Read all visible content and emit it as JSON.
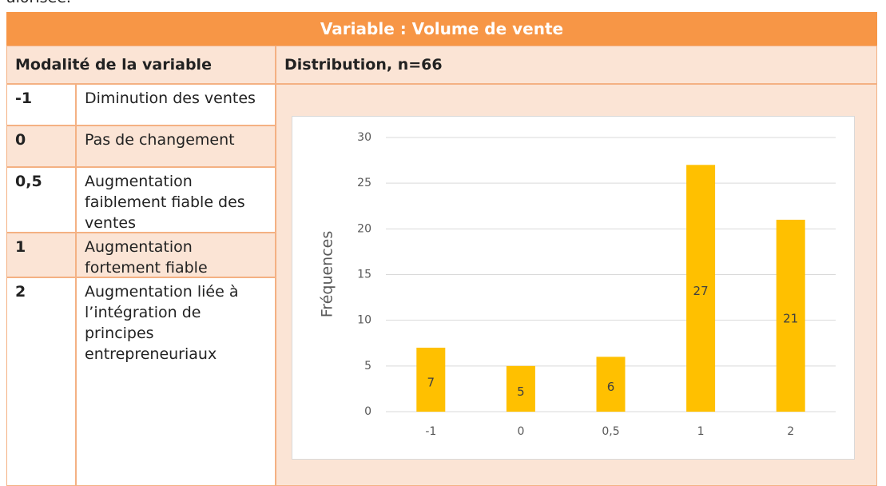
{
  "intro_fragment": "alorisée.",
  "table": {
    "title": "Variable : Volume de vente",
    "left_header": "Modalité de la variable",
    "right_header": "Distribution, n=66",
    "rows": [
      [
        "-1",
        "Diminution des ventes"
      ],
      [
        "0",
        "Pas de changement"
      ],
      [
        "0,5",
        "Augmentation faiblement fiable des ventes"
      ],
      [
        "1",
        "Augmentation fortement fiable"
      ],
      [
        "2",
        "Augmentation liée à l’intégration de principes entrepreneuriaux"
      ]
    ]
  },
  "chart_data": {
    "type": "bar",
    "y_label": "Fréquences",
    "categories": [
      "-1",
      "0",
      "0,5",
      "1",
      "2"
    ],
    "values": [
      7,
      5,
      6,
      27,
      21
    ],
    "color": "#ffc000",
    "ylim": [
      0,
      30
    ],
    "yticks": [
      0,
      5,
      10,
      15,
      20,
      25,
      30
    ],
    "grid": true
  }
}
